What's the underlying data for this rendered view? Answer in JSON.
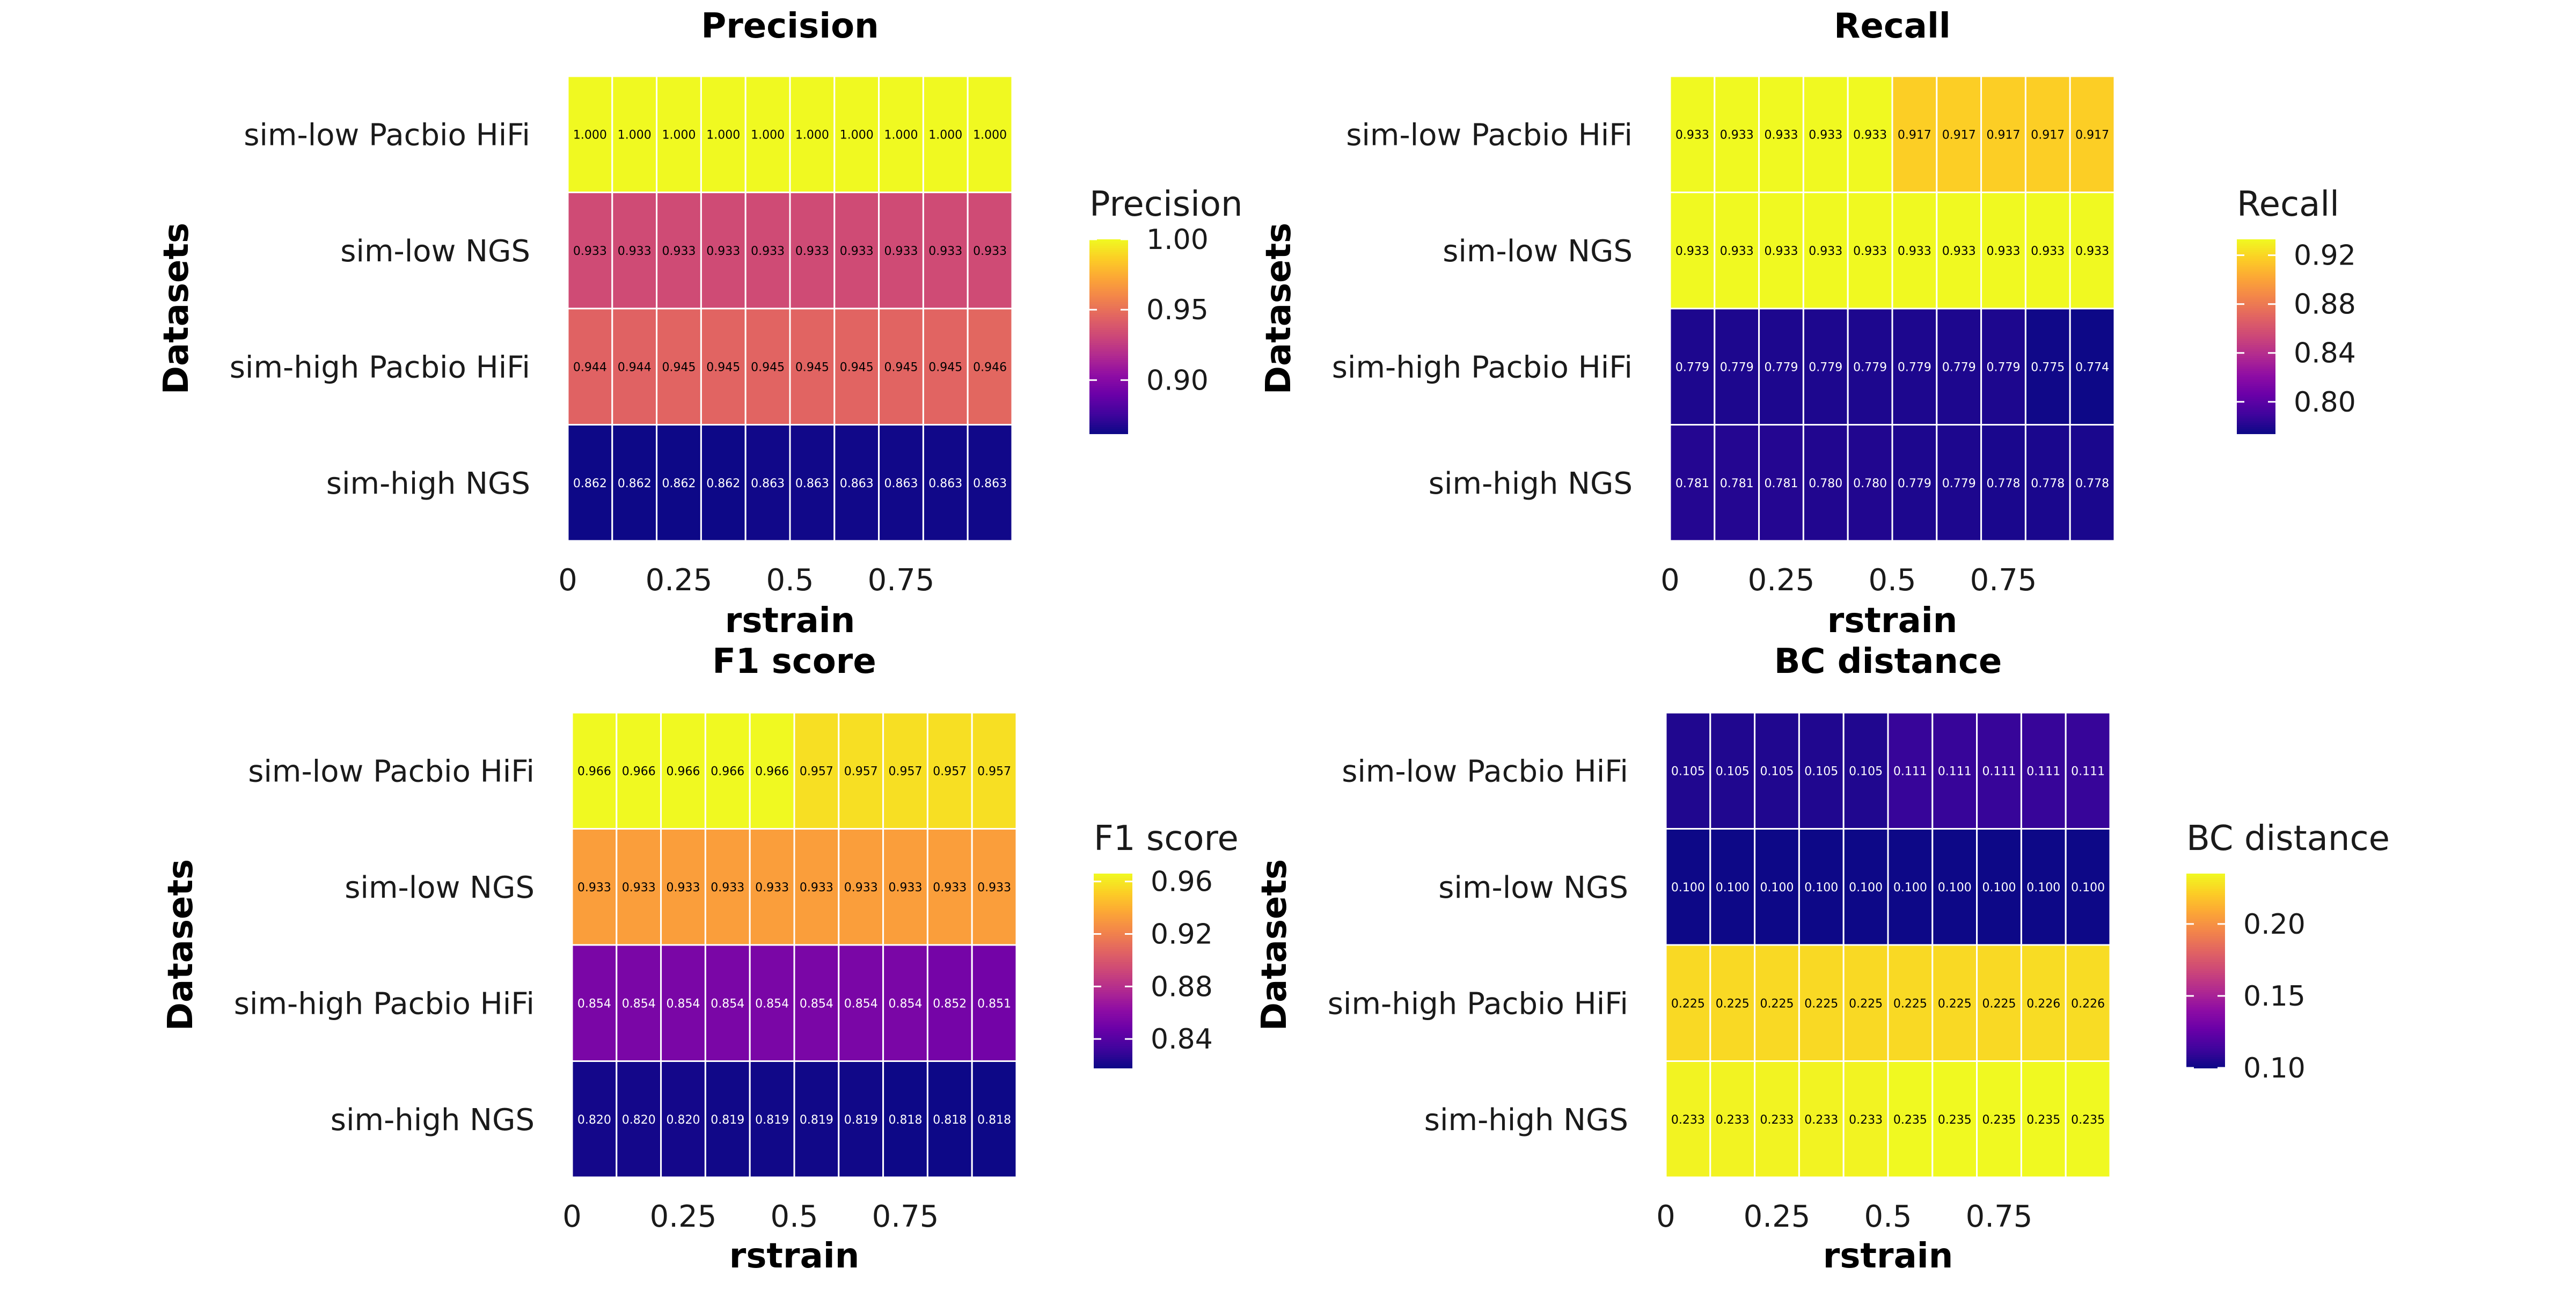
{
  "chart_data": [
    {
      "type": "heatmap",
      "title": "Precision",
      "xlabel": "rstrain",
      "ylabel": "Datasets",
      "x_ticks": [
        "0",
        "0.25",
        "0.5",
        "0.75"
      ],
      "x_tick_values": [
        0,
        0.25,
        0.5,
        0.75
      ],
      "x": [
        0,
        0.1,
        0.2,
        0.3,
        0.4,
        0.5,
        0.6,
        0.7,
        0.8,
        0.9
      ],
      "rows": [
        "sim-low Pacbio HiFi",
        "sim-low NGS",
        "sim-high Pacbio HiFi",
        "sim-high NGS"
      ],
      "values": [
        [
          "1.000",
          "1.000",
          "1.000",
          "1.000",
          "1.000",
          "1.000",
          "1.000",
          "1.000",
          "1.000",
          "1.000"
        ],
        [
          "0.933",
          "0.933",
          "0.933",
          "0.933",
          "0.933",
          "0.933",
          "0.933",
          "0.933",
          "0.933",
          "0.933"
        ],
        [
          "0.944",
          "0.944",
          "0.945",
          "0.945",
          "0.945",
          "0.945",
          "0.945",
          "0.945",
          "0.945",
          "0.946"
        ],
        [
          "0.862",
          "0.862",
          "0.862",
          "0.862",
          "0.863",
          "0.863",
          "0.863",
          "0.863",
          "0.863",
          "0.863"
        ]
      ],
      "legend": {
        "title": "Precision",
        "ticks": [
          "0.90",
          "0.95",
          "1.00"
        ],
        "tick_values": [
          0.9,
          0.95,
          1.0
        ],
        "range": [
          0.862,
          1.0
        ]
      }
    },
    {
      "type": "heatmap",
      "title": "Recall",
      "xlabel": "rstrain",
      "ylabel": "Datasets",
      "x_ticks": [
        "0",
        "0.25",
        "0.5",
        "0.75"
      ],
      "x_tick_values": [
        0,
        0.25,
        0.5,
        0.75
      ],
      "x": [
        0,
        0.1,
        0.2,
        0.3,
        0.4,
        0.5,
        0.6,
        0.7,
        0.8,
        0.9
      ],
      "rows": [
        "sim-low Pacbio HiFi",
        "sim-low NGS",
        "sim-high Pacbio HiFi",
        "sim-high NGS"
      ],
      "values": [
        [
          "0.933",
          "0.933",
          "0.933",
          "0.933",
          "0.933",
          "0.917",
          "0.917",
          "0.917",
          "0.917",
          "0.917"
        ],
        [
          "0.933",
          "0.933",
          "0.933",
          "0.933",
          "0.933",
          "0.933",
          "0.933",
          "0.933",
          "0.933",
          "0.933"
        ],
        [
          "0.779",
          "0.779",
          "0.779",
          "0.779",
          "0.779",
          "0.779",
          "0.779",
          "0.779",
          "0.775",
          "0.774"
        ],
        [
          "0.781",
          "0.781",
          "0.781",
          "0.780",
          "0.780",
          "0.779",
          "0.779",
          "0.778",
          "0.778",
          "0.778"
        ]
      ],
      "legend": {
        "title": "Recall",
        "ticks": [
          "0.80",
          "0.84",
          "0.88",
          "0.92"
        ],
        "tick_values": [
          0.8,
          0.84,
          0.88,
          0.92
        ],
        "range": [
          0.774,
          0.933
        ]
      }
    },
    {
      "type": "heatmap",
      "title": "F1 score",
      "xlabel": "rstrain",
      "ylabel": "Datasets",
      "x_ticks": [
        "0",
        "0.25",
        "0.5",
        "0.75"
      ],
      "x_tick_values": [
        0,
        0.25,
        0.5,
        0.75
      ],
      "x": [
        0,
        0.1,
        0.2,
        0.3,
        0.4,
        0.5,
        0.6,
        0.7,
        0.8,
        0.9
      ],
      "rows": [
        "sim-low Pacbio HiFi",
        "sim-low NGS",
        "sim-high Pacbio HiFi",
        "sim-high NGS"
      ],
      "values": [
        [
          "0.966",
          "0.966",
          "0.966",
          "0.966",
          "0.966",
          "0.957",
          "0.957",
          "0.957",
          "0.957",
          "0.957"
        ],
        [
          "0.933",
          "0.933",
          "0.933",
          "0.933",
          "0.933",
          "0.933",
          "0.933",
          "0.933",
          "0.933",
          "0.933"
        ],
        [
          "0.854",
          "0.854",
          "0.854",
          "0.854",
          "0.854",
          "0.854",
          "0.854",
          "0.854",
          "0.852",
          "0.851"
        ],
        [
          "0.820",
          "0.820",
          "0.820",
          "0.819",
          "0.819",
          "0.819",
          "0.819",
          "0.818",
          "0.818",
          "0.818"
        ]
      ],
      "legend": {
        "title": "F1 score",
        "ticks": [
          "0.84",
          "0.88",
          "0.92",
          "0.96"
        ],
        "tick_values": [
          0.84,
          0.88,
          0.92,
          0.96
        ],
        "range": [
          0.818,
          0.966
        ]
      }
    },
    {
      "type": "heatmap",
      "title": "BC distance",
      "xlabel": "rstrain",
      "ylabel": "Datasets",
      "x_ticks": [
        "0",
        "0.25",
        "0.5",
        "0.75"
      ],
      "x_tick_values": [
        0,
        0.25,
        0.5,
        0.75
      ],
      "x": [
        0,
        0.1,
        0.2,
        0.3,
        0.4,
        0.5,
        0.6,
        0.7,
        0.8,
        0.9
      ],
      "rows": [
        "sim-low Pacbio HiFi",
        "sim-low NGS",
        "sim-high Pacbio HiFi",
        "sim-high NGS"
      ],
      "values": [
        [
          "0.105",
          "0.105",
          "0.105",
          "0.105",
          "0.105",
          "0.111",
          "0.111",
          "0.111",
          "0.111",
          "0.111"
        ],
        [
          "0.100",
          "0.100",
          "0.100",
          "0.100",
          "0.100",
          "0.100",
          "0.100",
          "0.100",
          "0.100",
          "0.100"
        ],
        [
          "0.225",
          "0.225",
          "0.225",
          "0.225",
          "0.225",
          "0.225",
          "0.225",
          "0.225",
          "0.226",
          "0.226"
        ],
        [
          "0.233",
          "0.233",
          "0.233",
          "0.233",
          "0.233",
          "0.235",
          "0.235",
          "0.235",
          "0.235",
          "0.235"
        ]
      ],
      "legend": {
        "title": "BC distance",
        "ticks": [
          "0.10",
          "0.15",
          "0.20"
        ],
        "tick_values": [
          0.1,
          0.15,
          0.2
        ],
        "range": [
          0.1,
          0.235
        ]
      }
    }
  ],
  "colormap": "plasma",
  "colors": {
    "background": "#ffffff",
    "cell_border": "#ffffff",
    "text_dark": "#000000",
    "text_light": "#ffffff"
  }
}
